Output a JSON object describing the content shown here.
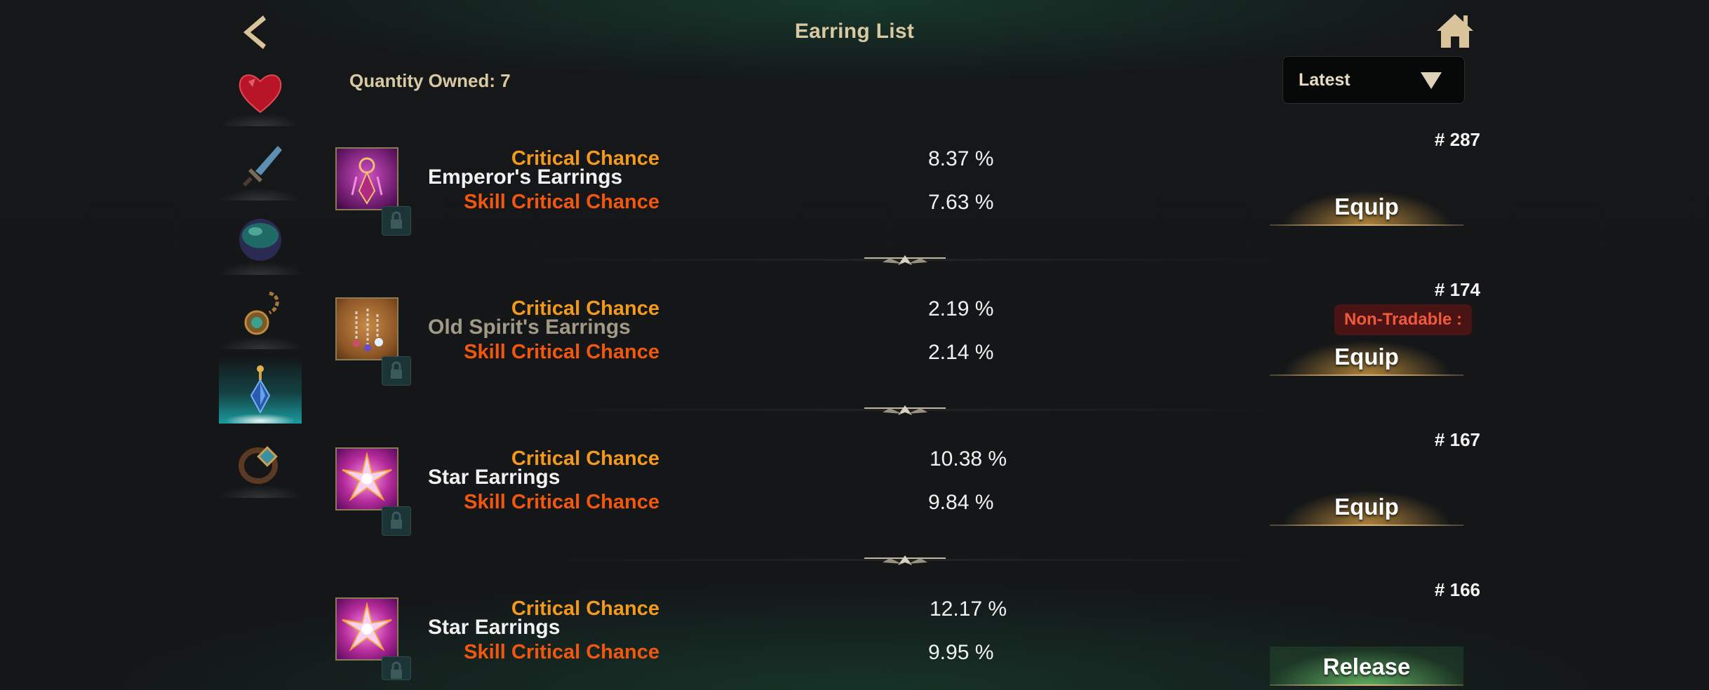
{
  "header": {
    "title": "Earring List"
  },
  "quantity_label": "Quantity Owned: 7",
  "sort": {
    "selected": "Latest"
  },
  "sidebar": {
    "items": [
      {
        "name": "heart-gem-icon"
      },
      {
        "name": "sword-icon"
      },
      {
        "name": "orb-icon"
      },
      {
        "name": "necklace-icon"
      },
      {
        "name": "earring-icon",
        "active": true
      },
      {
        "name": "bracelet-icon"
      }
    ]
  },
  "items": [
    {
      "rank": "# 287",
      "name": "Emperor's Earrings",
      "dimmed": false,
      "stats": [
        {
          "label": "Critical Chance",
          "value": "8.37 %"
        },
        {
          "label": "Skill Critical Chance",
          "value": "7.63 %"
        }
      ],
      "action": "Equip",
      "badge": ""
    },
    {
      "rank": "# 174",
      "name": "Old Spirit's Earrings",
      "dimmed": true,
      "stats": [
        {
          "label": "Critical Chance",
          "value": "2.19 %"
        },
        {
          "label": "Skill Critical Chance",
          "value": "2.14 %"
        }
      ],
      "action": "Equip",
      "badge": "Non-Tradable :"
    },
    {
      "rank": "# 167",
      "name": "Star Earrings",
      "dimmed": false,
      "stats": [
        {
          "label": "Critical Chance",
          "value": "10.38 %"
        },
        {
          "label": "Skill Critical Chance",
          "value": "9.84 %"
        }
      ],
      "action": "Equip",
      "badge": ""
    },
    {
      "rank": "# 166",
      "name": "Star Earrings",
      "dimmed": false,
      "stats": [
        {
          "label": "Critical Chance",
          "value": "12.17 %"
        },
        {
          "label": "Skill Critical Chance",
          "value": "9.95 %"
        }
      ],
      "action": "Release",
      "badge": ""
    }
  ],
  "colors": {
    "title": "#d9c9a3",
    "crit": "#f39a1c",
    "skill_crit": "#f2570e",
    "active_tab": "#1a9a9e",
    "badge_bg": "#4a1414",
    "badge_text": "#f05a3a"
  }
}
